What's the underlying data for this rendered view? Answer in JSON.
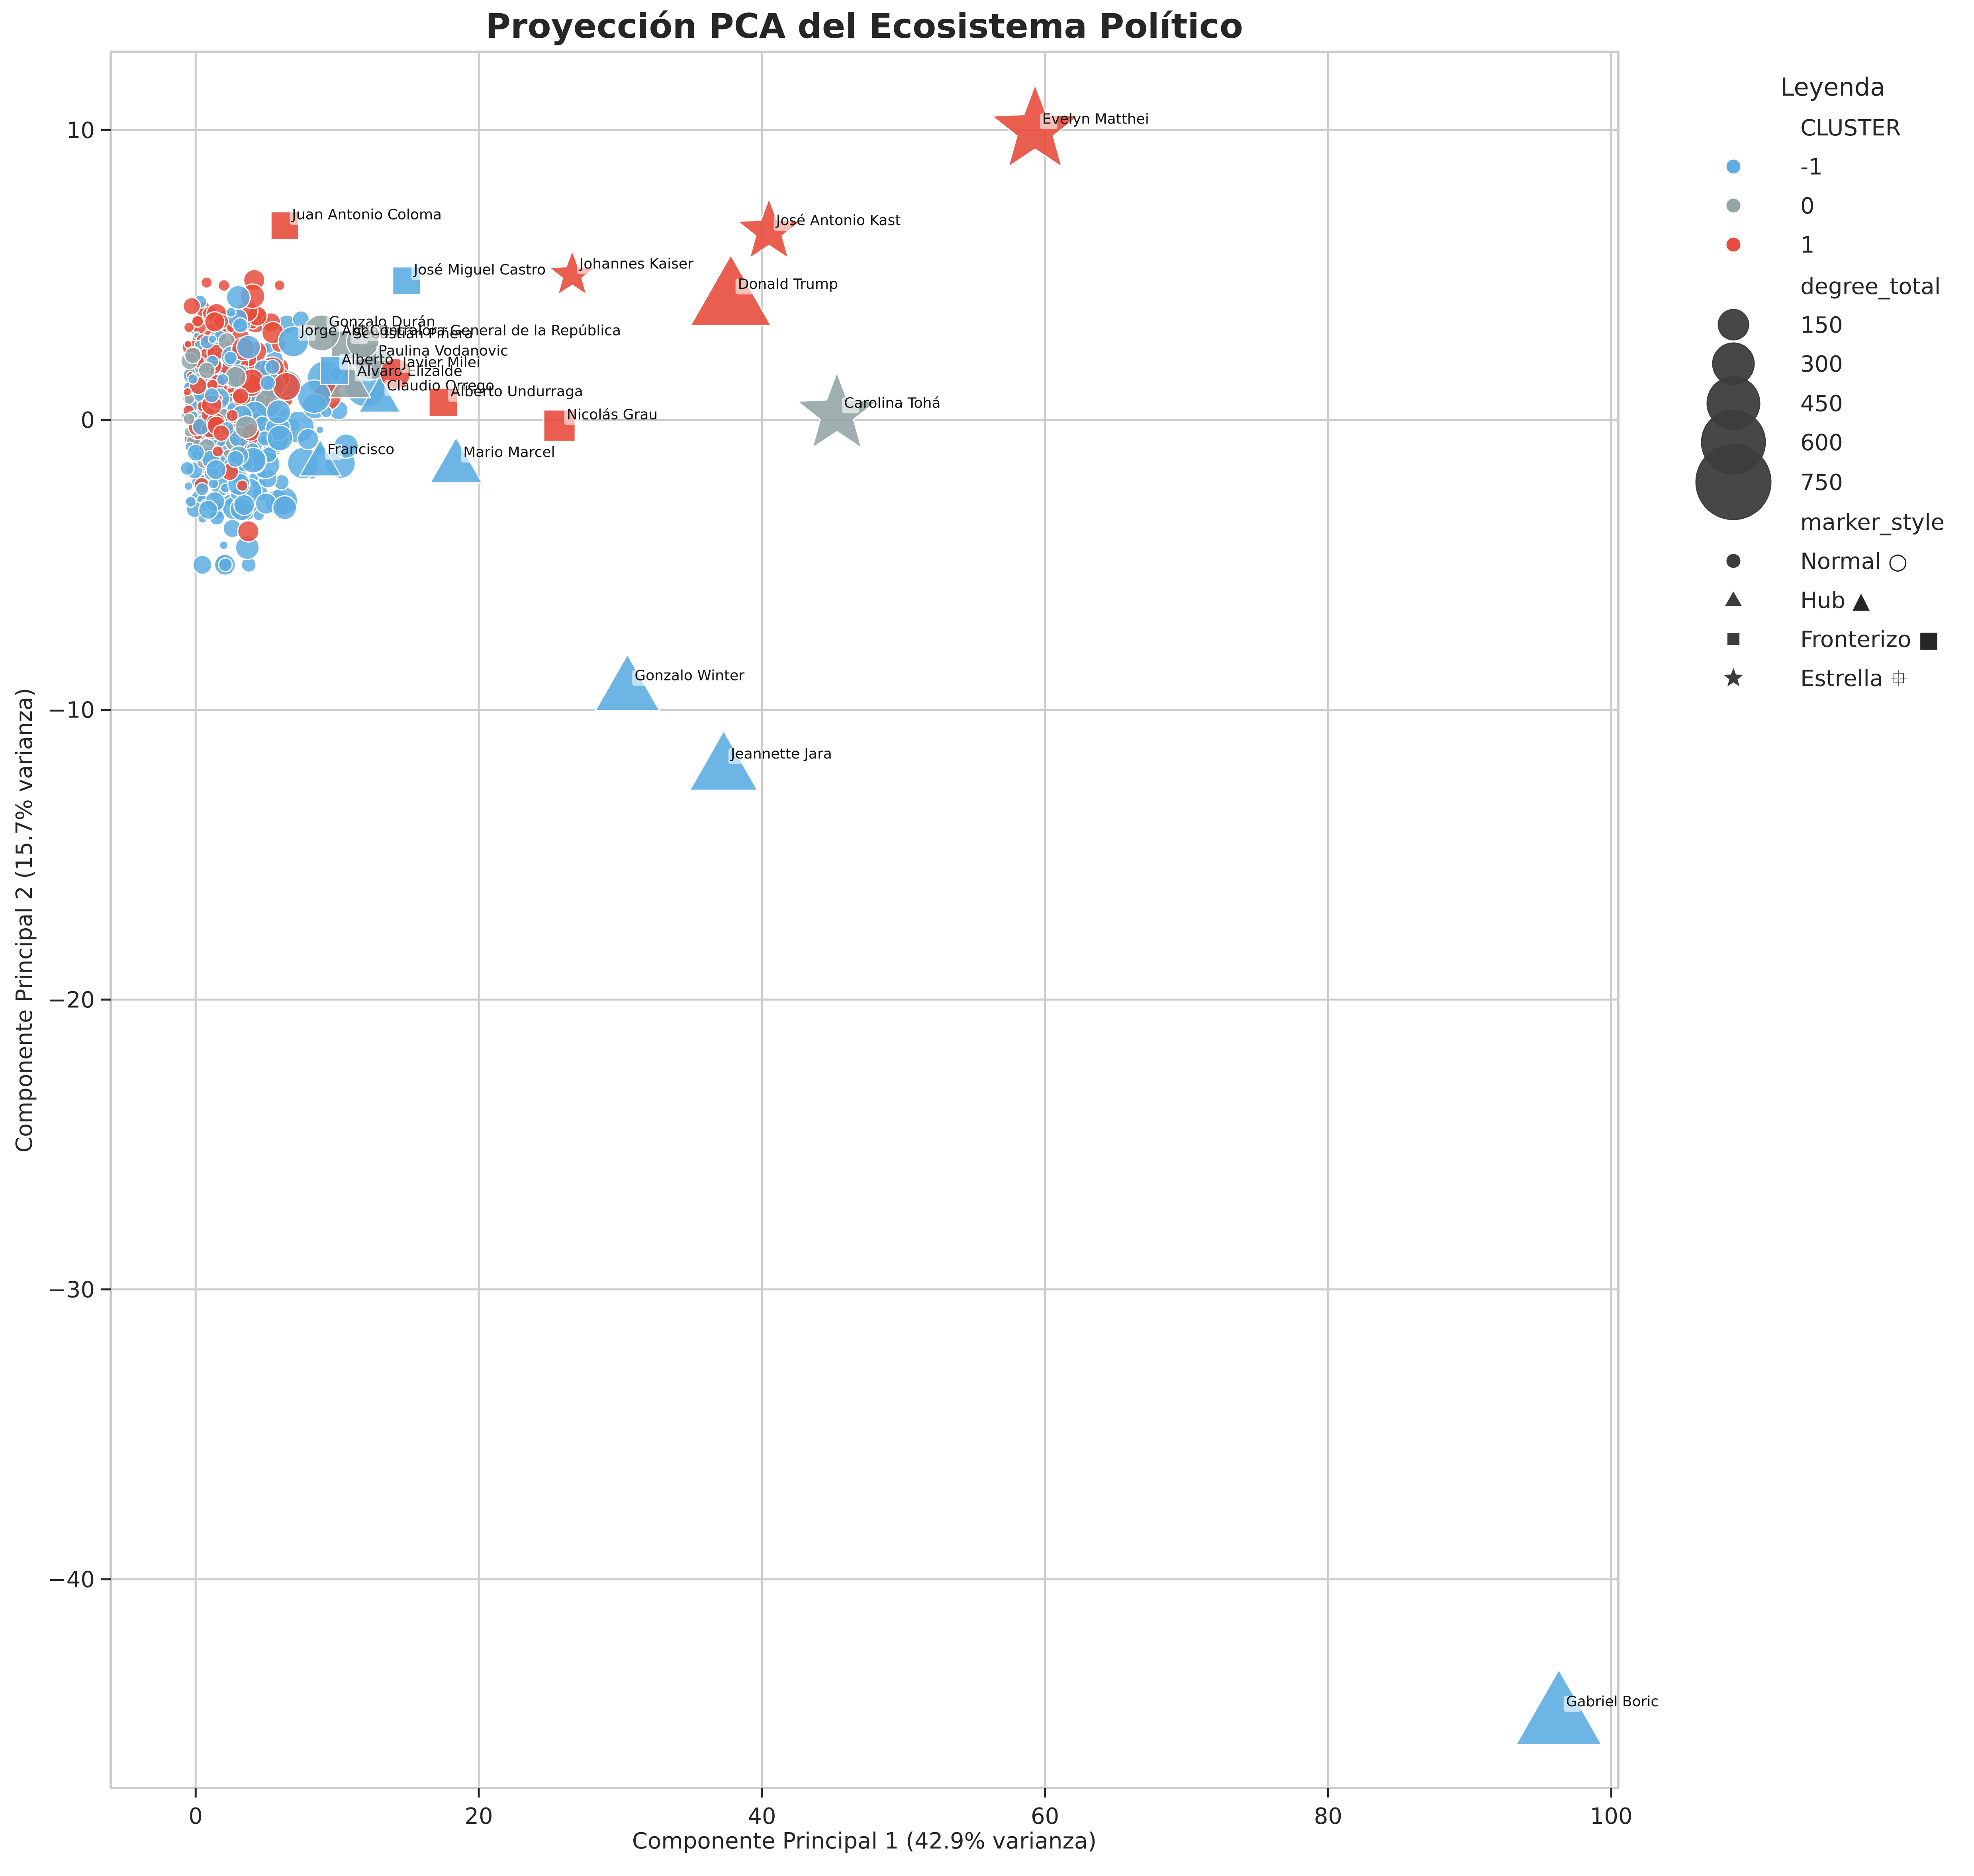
{
  "chart_data": {
    "type": "scatter",
    "title": "Proyección PCA del Ecosistema Político",
    "xlabel": "Componente Principal 1 (42.9% varianza)",
    "ylabel": "Componente Principal 2 (15.7% varianza)",
    "xlim": [
      -6,
      100.5
    ],
    "ylim": [
      -47.2,
      12.7
    ],
    "x_ticks": [
      0,
      20,
      40,
      60,
      80,
      100
    ],
    "y_ticks": [
      10,
      0,
      -10,
      -20,
      -30,
      -40
    ],
    "x_tick_labels": [
      "0",
      "20",
      "40",
      "60",
      "80",
      "100"
    ],
    "y_tick_labels": [
      "10",
      "0",
      "−10",
      "−20",
      "−30",
      "−40"
    ],
    "grid": true,
    "legend": {
      "title": "Leyenda",
      "placement": "outside-right",
      "cluster_title": "CLUSTER",
      "clusters": [
        {
          "label": "-1",
          "color": "#5DADE2"
        },
        {
          "label": "0",
          "color": "#95A5A6"
        },
        {
          "label": "1",
          "color": "#E74C3C"
        }
      ],
      "size_title": "degree_total",
      "sizes": [
        "150",
        "300",
        "450",
        "600",
        "750"
      ],
      "marker_title": "marker_style",
      "markers": [
        {
          "label": "Normal ○",
          "shape": "circle"
        },
        {
          "label": "Hub ▲",
          "shape": "triangle"
        },
        {
          "label": "Fronterizo ■",
          "shape": "square"
        },
        {
          "label": "Estrella ⯐",
          "shape": "star"
        }
      ]
    },
    "colors": {
      "-1": "#5DADE2",
      "0": "#95A5A6",
      "1": "#E74C3C"
    },
    "labeled_points": [
      {
        "label": "Gabriel Boric",
        "x": 96.3,
        "y": -44.6,
        "cluster": "-1",
        "shape": "triangle",
        "size": 750
      },
      {
        "label": "Evelyn Matthei",
        "x": 59.3,
        "y": 10.0,
        "cluster": "1",
        "shape": "star",
        "size": 600
      },
      {
        "label": "José Antonio Kast",
        "x": 40.5,
        "y": 6.5,
        "cluster": "1",
        "shape": "star",
        "size": 300
      },
      {
        "label": "Donald Trump",
        "x": 37.8,
        "y": 4.3,
        "cluster": "1",
        "shape": "triangle",
        "size": 650
      },
      {
        "label": "Carolina Tohá",
        "x": 45.3,
        "y": 0.2,
        "cluster": "0",
        "shape": "star",
        "size": 500
      },
      {
        "label": "Johannes Kaiser",
        "x": 26.6,
        "y": 5.0,
        "cluster": "1",
        "shape": "star",
        "size": 150
      },
      {
        "label": "José Miguel Castro",
        "x": 14.9,
        "y": 4.8,
        "cluster": "-1",
        "shape": "square",
        "size": 120
      },
      {
        "label": "Juan Antonio Coloma",
        "x": 6.3,
        "y": 6.7,
        "cluster": "1",
        "shape": "square",
        "size": 120
      },
      {
        "label": "Nicolás Grau",
        "x": 25.7,
        "y": -0.2,
        "cluster": "1",
        "shape": "square",
        "size": 160
      },
      {
        "label": "Gonzalo Winter",
        "x": 30.5,
        "y": -9.2,
        "cluster": "-1",
        "shape": "triangle",
        "size": 400
      },
      {
        "label": "Jeannette Jara",
        "x": 37.3,
        "y": -11.9,
        "cluster": "-1",
        "shape": "triangle",
        "size": 450
      },
      {
        "label": "Mario Marcel",
        "x": 18.4,
        "y": -1.5,
        "cluster": "-1",
        "shape": "triangle",
        "size": 250
      },
      {
        "label": "Francisco",
        "x": 8.8,
        "y": -1.4,
        "cluster": "-1",
        "shape": "triangle",
        "size": 150
      },
      {
        "label": "Claudio Orrego",
        "x": 13.0,
        "y": 0.8,
        "cluster": "-1",
        "shape": "triangle",
        "size": 150
      },
      {
        "label": "Alberto Undurraga",
        "x": 17.5,
        "y": 0.6,
        "cluster": "1",
        "shape": "square",
        "size": 130
      },
      {
        "label": "Álvaro Elizalde",
        "x": 10.9,
        "y": 1.3,
        "cluster": "0",
        "shape": "triangle",
        "size": 150
      },
      {
        "label": "Paulina Vodanovic",
        "x": 12.4,
        "y": 2.0,
        "cluster": "0",
        "shape": "circle",
        "size": 150
      },
      {
        "label": "Sebastián Piñera",
        "x": 10.6,
        "y": 2.6,
        "cluster": "0",
        "shape": "square",
        "size": 130
      },
      {
        "label": "Javier Milei",
        "x": 14.1,
        "y": 1.6,
        "cluster": "1",
        "shape": "circle",
        "size": 100
      },
      {
        "label": "Alberto",
        "x": 9.8,
        "y": 1.7,
        "cluster": "-1",
        "shape": "square",
        "size": 120
      },
      {
        "label": "Gonzalo Durán",
        "x": 8.9,
        "y": 3.0,
        "cluster": "0",
        "shape": "circle",
        "size": 150
      },
      {
        "label": "Jorge Abbott",
        "x": 6.9,
        "y": 2.7,
        "cluster": "-1",
        "shape": "circle",
        "size": 100
      },
      {
        "label": "Contralora General de la República",
        "x": 11.8,
        "y": 2.7,
        "cluster": "0",
        "shape": "circle",
        "size": 120
      }
    ]
  }
}
